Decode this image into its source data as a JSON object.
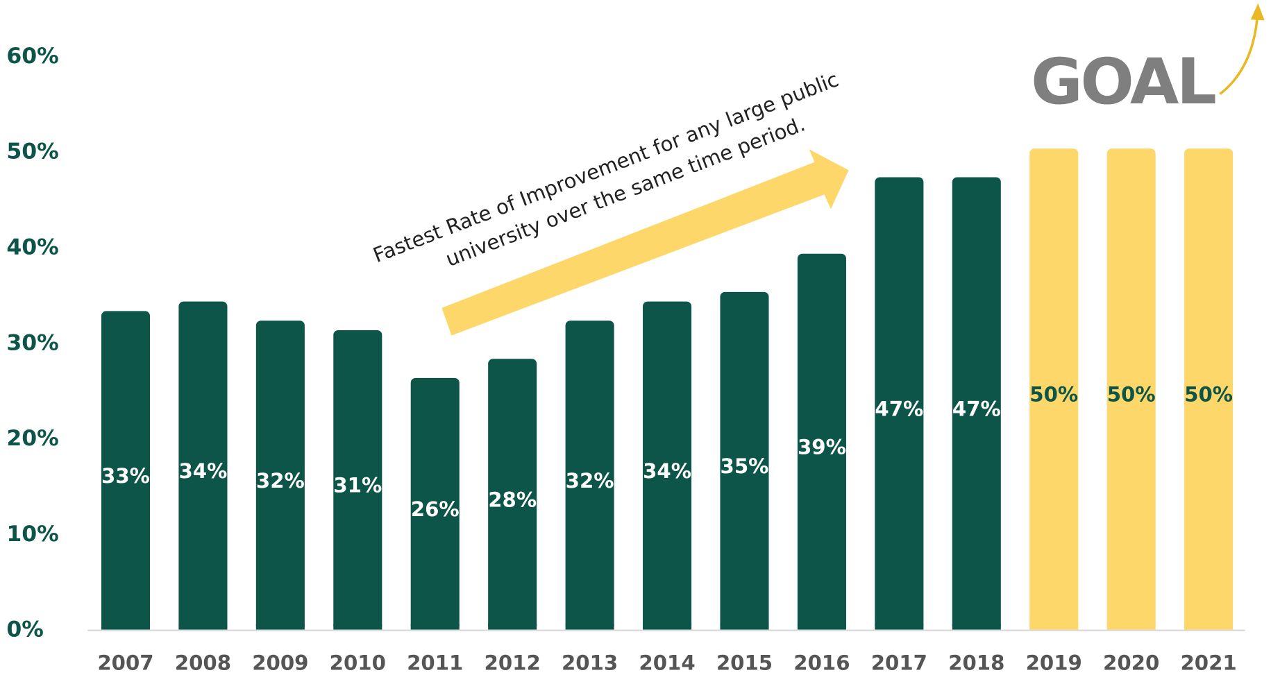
{
  "chart_data": {
    "type": "bar",
    "categories": [
      "2007",
      "2008",
      "2009",
      "2010",
      "2011",
      "2012",
      "2013",
      "2014",
      "2015",
      "2016",
      "2017",
      "2018",
      "2019",
      "2020",
      "2021"
    ],
    "values": [
      33.4,
      34.4,
      32.4,
      31.4,
      26.4,
      28.4,
      32.4,
      34.4,
      35.4,
      39.4,
      47.4,
      47.4,
      50.4,
      50.4,
      50.4
    ],
    "value_labels": [
      "33%",
      "34%",
      "32%",
      "31%",
      "26%",
      "28%",
      "32%",
      "34%",
      "35%",
      "39%",
      "47%",
      "47%",
      "50%",
      "50%",
      "50%"
    ],
    "colors": [
      "#0d5449",
      "#0d5449",
      "#0d5449",
      "#0d5449",
      "#0d5449",
      "#0d5449",
      "#0d5449",
      "#0d5449",
      "#0d5449",
      "#0d5449",
      "#0d5449",
      "#0d5449",
      "#fdd76a",
      "#fdd76a",
      "#fdd76a"
    ],
    "label_colors": [
      "#ffffff",
      "#ffffff",
      "#ffffff",
      "#ffffff",
      "#ffffff",
      "#ffffff",
      "#ffffff",
      "#ffffff",
      "#ffffff",
      "#ffffff",
      "#ffffff",
      "#ffffff",
      "#0d5449",
      "#0d5449",
      "#0d5449"
    ],
    "ylim": [
      0,
      60
    ],
    "yticks": [
      {
        "value": 0,
        "label": "0%"
      },
      {
        "value": 10,
        "label": "10%"
      },
      {
        "value": 20,
        "label": "20%"
      },
      {
        "value": 30,
        "label": "30%"
      },
      {
        "value": 40,
        "label": "40%"
      },
      {
        "value": 50,
        "label": "50%"
      },
      {
        "value": 60,
        "label": "60%"
      }
    ],
    "grid": false,
    "annotations": [
      "Fastest Rate of Improvement for any large public",
      "university over the same time period.",
      "GOAL"
    ]
  }
}
